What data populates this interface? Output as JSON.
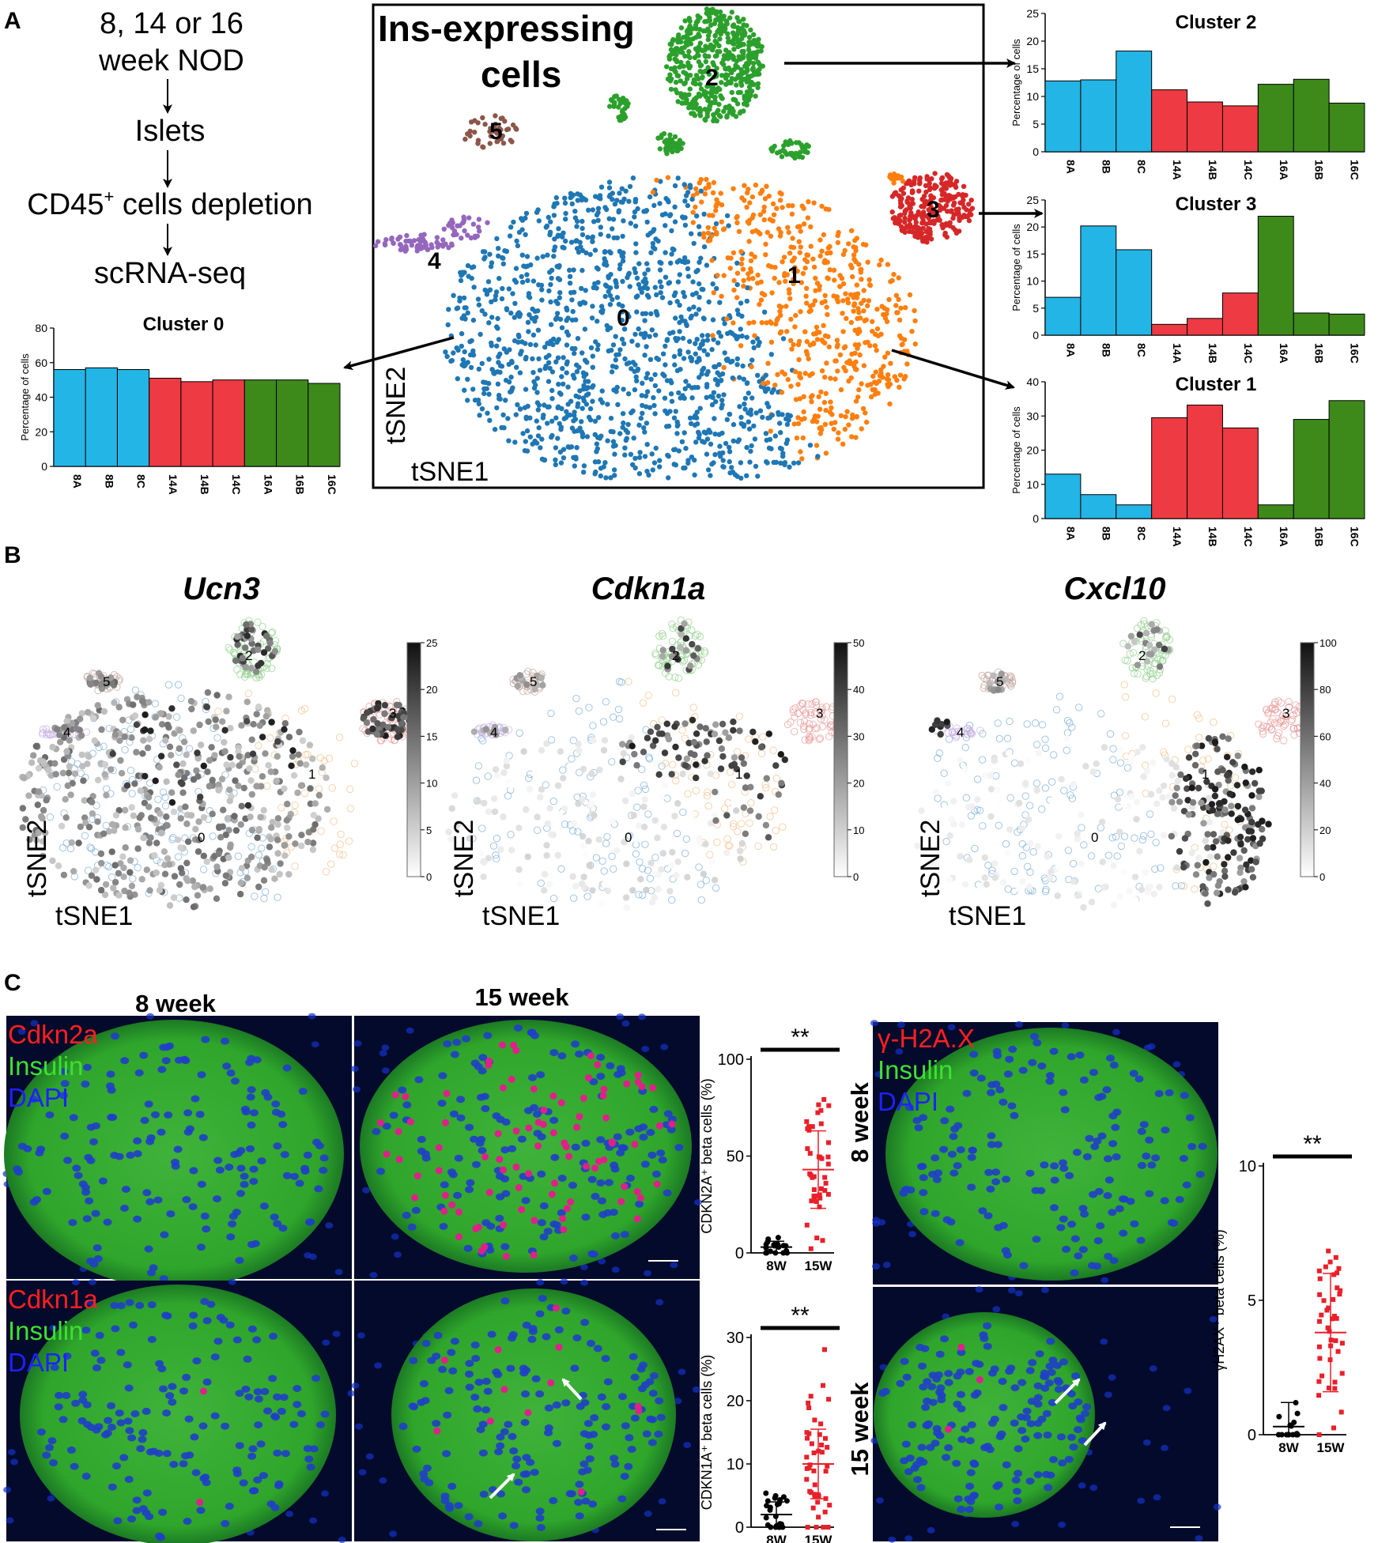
{
  "panels": {
    "A": "A",
    "B": "B",
    "C": "C"
  },
  "flow": {
    "steps": [
      "8, 14 or 16",
      "week NOD",
      "Islets",
      "CD45",
      "+",
      " cells depletion",
      "scRNA-seq"
    ]
  },
  "tsne_main": {
    "title_line1": "Ins-expressing",
    "title_line2": "cells",
    "axis_y": "tSNE2",
    "axis_x": "tSNE1",
    "clusters": [
      "0",
      "1",
      "2",
      "3",
      "4",
      "5"
    ],
    "colors": {
      "c0": "#1f77b4",
      "c1": "#ff7f0e",
      "c2": "#2ca02c",
      "c3": "#d62728",
      "c4": "#9467bd",
      "c5": "#8c564b"
    }
  },
  "chart_data": [
    {
      "type": "bar",
      "title": "Cluster 0",
      "ylabel": "Percentage of cells",
      "categories": [
        "8A",
        "8B",
        "8C",
        "14A",
        "14B",
        "14C",
        "16A",
        "16B",
        "16C"
      ],
      "values": [
        56,
        57,
        56,
        51,
        49,
        50,
        50,
        50,
        48
      ],
      "ylim": [
        0,
        80
      ],
      "yticks": [
        "0",
        "20",
        "40",
        "60",
        "80"
      ]
    },
    {
      "type": "bar",
      "title": "Cluster 2",
      "ylabel": "Percentage of cells",
      "categories": [
        "8A",
        "8B",
        "8C",
        "14A",
        "14B",
        "14C",
        "16A",
        "16B",
        "16C"
      ],
      "values": [
        12.8,
        13,
        18.2,
        11.2,
        9,
        8.3,
        12.2,
        13.1,
        8.8
      ],
      "ylim": [
        0,
        25
      ],
      "yticks": [
        "0",
        "5",
        "10",
        "15",
        "20",
        "25"
      ]
    },
    {
      "type": "bar",
      "title": "Cluster 3",
      "ylabel": "Percentage of cells",
      "categories": [
        "8A",
        "8B",
        "8C",
        "14A",
        "14B",
        "14C",
        "16A",
        "16B",
        "16C"
      ],
      "values": [
        7,
        20.2,
        15.8,
        2,
        3.1,
        7.8,
        22,
        4.1,
        3.9
      ],
      "ylim": [
        0,
        25
      ],
      "yticks": [
        "0",
        "5",
        "10",
        "15",
        "20",
        "25"
      ]
    },
    {
      "type": "bar",
      "title": "Cluster 1",
      "ylabel": "Percentage of cells",
      "categories": [
        "8A",
        "8B",
        "8C",
        "14A",
        "14B",
        "14C",
        "16A",
        "16B",
        "16C"
      ],
      "values": [
        13,
        7,
        4,
        29.5,
        33.2,
        26.5,
        4,
        29,
        34.5
      ],
      "ylim": [
        0,
        40
      ],
      "yticks": [
        "0",
        "10",
        "20",
        "30",
        "40"
      ]
    },
    {
      "type": "scatter",
      "ylabel": "CDKN2A⁺ beta cells  (%)",
      "categories": [
        "8W",
        "15W"
      ],
      "ylim": [
        0,
        100
      ],
      "yticks": [
        "0",
        "50",
        "100"
      ],
      "means": [
        3,
        43
      ],
      "sd_upper": [
        6,
        63
      ],
      "sd_lower": [
        0,
        23
      ],
      "significance": "**"
    },
    {
      "type": "scatter",
      "ylabel": "CDKN1A⁺ beta cells  (%)",
      "categories": [
        "8W",
        "15W"
      ],
      "ylim": [
        0,
        30
      ],
      "yticks": [
        "0",
        "10",
        "20",
        "30"
      ],
      "means": [
        2,
        10
      ],
      "sd_upper": [
        4,
        15.5
      ],
      "sd_lower": [
        0,
        4.5
      ],
      "significance": "**"
    },
    {
      "type": "scatter",
      "ylabel": "γH2AX⁺ beta cells  (%)",
      "categories": [
        "8W",
        "15W"
      ],
      "ylim": [
        0,
        10
      ],
      "yticks": [
        "0",
        "5",
        "10"
      ],
      "means": [
        0.3,
        3.8
      ],
      "sd_upper": [
        1.2,
        6
      ],
      "sd_lower": [
        0,
        1.6
      ],
      "significance": "**"
    }
  ],
  "feature_plots": [
    {
      "gene": "Ucn3",
      "scale": [
        "25",
        "20",
        "15",
        "10",
        "5",
        "0"
      ]
    },
    {
      "gene": "Cdkn1a",
      "scale": [
        "50",
        "40",
        "30",
        "20",
        "10",
        "0"
      ]
    },
    {
      "gene": "Cxcl10",
      "scale": [
        "100",
        "80",
        "60",
        "40",
        "20",
        "0"
      ]
    }
  ],
  "feature_axes": {
    "y": "tSNE2",
    "x": "tSNE1"
  },
  "micro": {
    "col_8": "8 week",
    "col_15": "15 week",
    "row_8": "8 week",
    "row_15": "15 week",
    "legend1": [
      "Cdkn2a",
      "Insulin",
      "DAPI"
    ],
    "legend2": [
      "Cdkn1a",
      "Insulin",
      "DAPI"
    ],
    "legend3": [
      "γ-H2A.X",
      "Insulin",
      "DAPI"
    ]
  }
}
